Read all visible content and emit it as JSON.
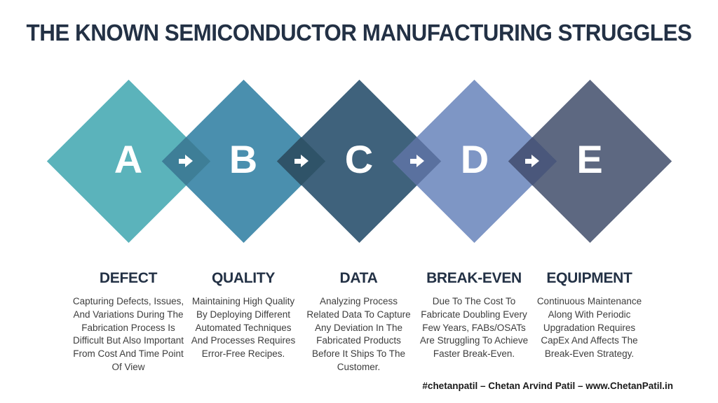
{
  "title": "THE KNOWN SEMICONDUCTOR MANUFACTURING STRUGGLES",
  "colors": {
    "background": "#FFFFFF",
    "title_text": "#233145",
    "heading_text": "#233145",
    "body_text": "#3D3D3D",
    "letter_text": "#FFFFFF",
    "arrow": "#FFFFFF"
  },
  "steps": [
    {
      "letter": "A",
      "diamond_color": "#5BB3BB",
      "heading": "DEFECT",
      "description": "Capturing Defects, Issues, And Variations During The Fabrication Process Is Difficult But Also Important From Cost And Time Point Of View"
    },
    {
      "letter": "B",
      "diamond_color": "#4A8FAE",
      "heading": "QUALITY",
      "description": "Maintaining High Quality By Deploying Different Automated Techniques And Processes Requires Error-Free Recipes."
    },
    {
      "letter": "C",
      "diamond_color": "#3F627C",
      "heading": "DATA",
      "description": "Analyzing Process Related Data To Capture Any Deviation In The Fabricated Products Before It Ships To The Customer."
    },
    {
      "letter": "D",
      "diamond_color": "#7E96C5",
      "heading": "BREAK-EVEN",
      "description": "Due To The Cost To Fabricate Doubling Every Few Years, FABs/OSATs Are Struggling To Achieve Faster Break-Even."
    },
    {
      "letter": "E",
      "diamond_color": "#5D6881",
      "heading": "EQUIPMENT",
      "description": "Continuous Maintenance Along With Periodic Upgradation Requires CapEx And Affects The Break-Even Strategy."
    }
  ],
  "connectors": [
    {
      "overlap_color": "#3E7E97"
    },
    {
      "overlap_color": "#2F5368"
    },
    {
      "overlap_color": "#5A719F"
    },
    {
      "overlap_color": "#4A577B"
    }
  ],
  "footer": "#chetanpatil – Chetan Arvind Patil – www.ChetanPatil.in"
}
